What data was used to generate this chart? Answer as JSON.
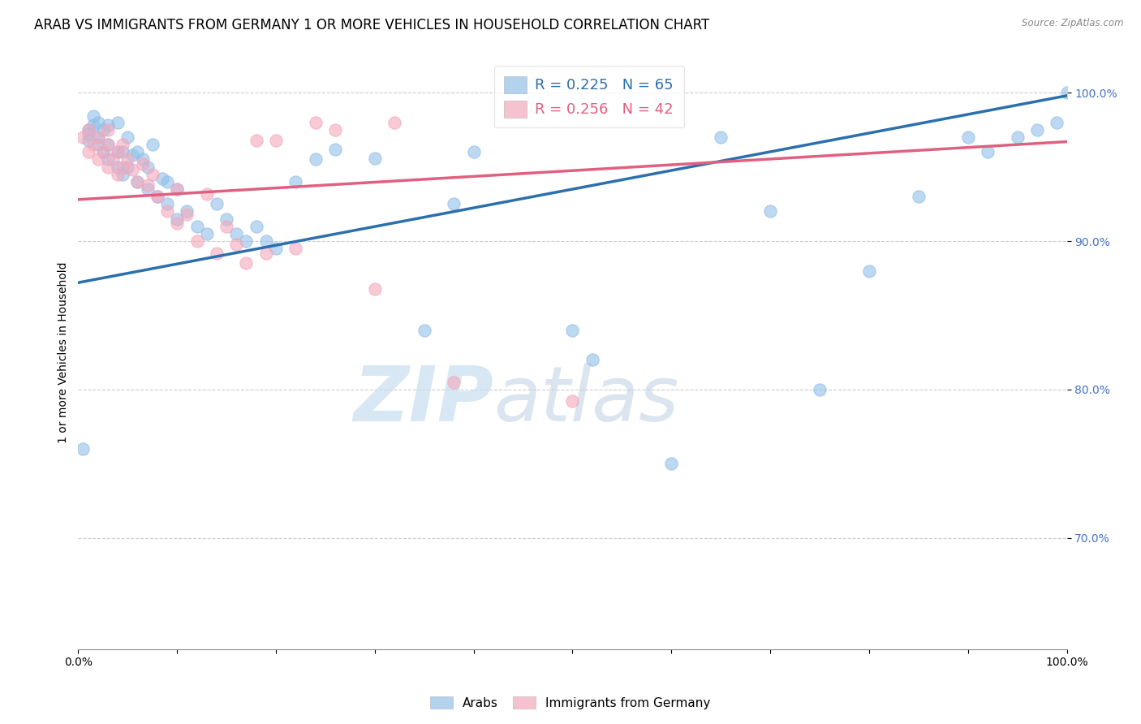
{
  "title": "ARAB VS IMMIGRANTS FROM GERMANY 1 OR MORE VEHICLES IN HOUSEHOLD CORRELATION CHART",
  "source": "Source: ZipAtlas.com",
  "ylabel": "1 or more Vehicles in Household",
  "xlim": [
    0.0,
    1.0
  ],
  "ylim": [
    0.625,
    1.025
  ],
  "yticks": [
    0.7,
    0.8,
    0.9,
    1.0
  ],
  "ytick_labels": [
    "70.0%",
    "80.0%",
    "90.0%",
    "100.0%"
  ],
  "xticks": [
    0.0,
    0.1,
    0.2,
    0.3,
    0.4,
    0.5,
    0.6,
    0.7,
    0.8,
    0.9,
    1.0
  ],
  "xtick_labels": [
    "0.0%",
    "",
    "",
    "",
    "",
    "",
    "",
    "",
    "",
    "",
    "100.0%"
  ],
  "legend_blue_label": "R = 0.225   N = 65",
  "legend_pink_label": "R = 0.256   N = 42",
  "blue_color": "#92bfe8",
  "pink_color": "#f4a8bc",
  "blue_line_color": "#2c6fad",
  "pink_line_color": "#e06080",
  "watermark_zip": "ZIP",
  "watermark_atlas": "atlas",
  "title_fontsize": 12,
  "axis_label_fontsize": 10,
  "tick_fontsize": 10,
  "blue_line_x": [
    0.0,
    1.0
  ],
  "blue_line_y": [
    0.872,
    0.998
  ],
  "pink_line_x": [
    0.0,
    1.0
  ],
  "pink_line_y": [
    0.928,
    0.967
  ],
  "blue_scatter_x": [
    0.005,
    0.01,
    0.01,
    0.01,
    0.015,
    0.015,
    0.02,
    0.02,
    0.02,
    0.025,
    0.025,
    0.03,
    0.03,
    0.03,
    0.04,
    0.04,
    0.04,
    0.045,
    0.045,
    0.05,
    0.05,
    0.055,
    0.06,
    0.06,
    0.065,
    0.07,
    0.07,
    0.075,
    0.08,
    0.085,
    0.09,
    0.09,
    0.1,
    0.1,
    0.11,
    0.12,
    0.13,
    0.14,
    0.15,
    0.16,
    0.17,
    0.18,
    0.19,
    0.2,
    0.22,
    0.24,
    0.26,
    0.3,
    0.35,
    0.38,
    0.4,
    0.5,
    0.52,
    0.6,
    0.65,
    0.7,
    0.75,
    0.8,
    0.85,
    0.9,
    0.92,
    0.95,
    0.97,
    0.99,
    1.0
  ],
  "blue_scatter_y": [
    0.76,
    0.968,
    0.972,
    0.975,
    0.978,
    0.984,
    0.965,
    0.97,
    0.98,
    0.96,
    0.975,
    0.955,
    0.965,
    0.978,
    0.95,
    0.96,
    0.98,
    0.945,
    0.96,
    0.95,
    0.97,
    0.958,
    0.94,
    0.96,
    0.955,
    0.935,
    0.95,
    0.965,
    0.93,
    0.942,
    0.925,
    0.94,
    0.915,
    0.935,
    0.92,
    0.91,
    0.905,
    0.925,
    0.915,
    0.905,
    0.9,
    0.91,
    0.9,
    0.895,
    0.94,
    0.955,
    0.962,
    0.956,
    0.84,
    0.925,
    0.96,
    0.84,
    0.82,
    0.75,
    0.97,
    0.92,
    0.8,
    0.88,
    0.93,
    0.97,
    0.96,
    0.97,
    0.975,
    0.98,
    1.0
  ],
  "pink_scatter_x": [
    0.005,
    0.01,
    0.01,
    0.015,
    0.02,
    0.02,
    0.025,
    0.03,
    0.03,
    0.03,
    0.035,
    0.04,
    0.04,
    0.045,
    0.045,
    0.05,
    0.055,
    0.06,
    0.065,
    0.07,
    0.075,
    0.08,
    0.09,
    0.1,
    0.1,
    0.11,
    0.12,
    0.13,
    0.14,
    0.15,
    0.16,
    0.17,
    0.18,
    0.19,
    0.2,
    0.22,
    0.24,
    0.26,
    0.3,
    0.32,
    0.38,
    0.5
  ],
  "pink_scatter_y": [
    0.97,
    0.96,
    0.975,
    0.965,
    0.955,
    0.97,
    0.96,
    0.95,
    0.965,
    0.975,
    0.955,
    0.945,
    0.96,
    0.95,
    0.965,
    0.955,
    0.948,
    0.94,
    0.952,
    0.938,
    0.945,
    0.93,
    0.92,
    0.912,
    0.935,
    0.918,
    0.9,
    0.932,
    0.892,
    0.91,
    0.898,
    0.885,
    0.968,
    0.892,
    0.968,
    0.895,
    0.98,
    0.975,
    0.868,
    0.98,
    0.805,
    0.792
  ]
}
